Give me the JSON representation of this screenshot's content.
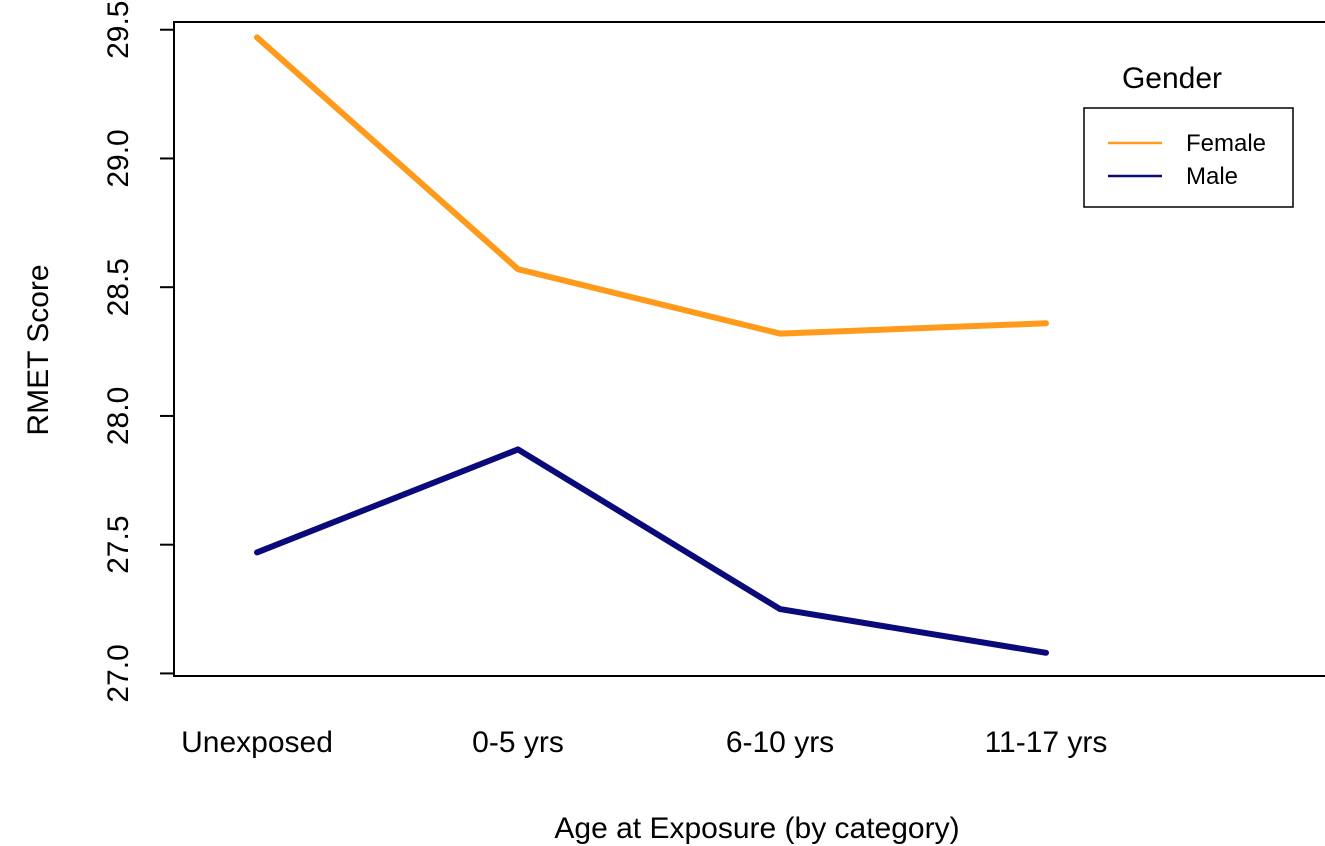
{
  "chart_data": {
    "type": "line",
    "title": "",
    "xlabel": "Age at Exposure (by category)",
    "ylabel": "RMET Score",
    "categories": [
      "Unexposed",
      "0-5 yrs",
      "6-10 yrs",
      "11-17 yrs"
    ],
    "y_ticks": [
      "27.0",
      "27.5",
      "28.0",
      "28.5",
      "29.0",
      "29.5"
    ],
    "ylim": [
      26.99,
      29.53
    ],
    "grid": false,
    "legend": {
      "title": "Gender",
      "placement": "top-right",
      "entries": [
        "Female",
        "Male"
      ]
    },
    "series": [
      {
        "name": "Female",
        "color": "#FF9A1A",
        "values": [
          29.47,
          28.57,
          28.32,
          28.36
        ]
      },
      {
        "name": "Male",
        "color": "#0A0A7A",
        "values": [
          27.47,
          27.87,
          27.25,
          27.08
        ]
      }
    ]
  }
}
